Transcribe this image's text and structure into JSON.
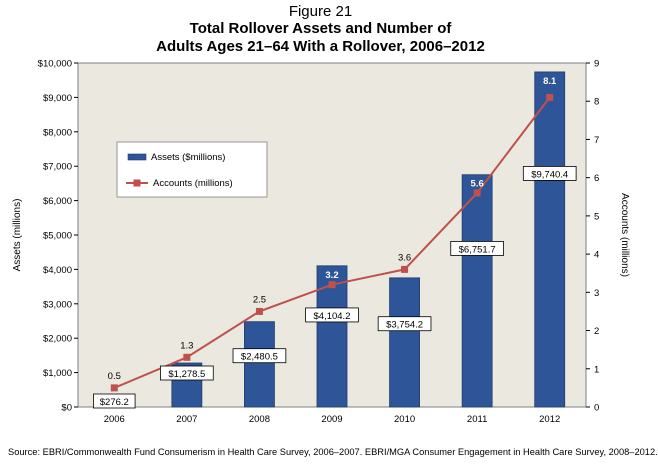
{
  "figure_label": "Figure 21",
  "title_line1": "Total Rollover Assets and Number of",
  "title_line2": "Adults Ages 21–64 With a Rollover, 2006–2012",
  "source": "Source: EBRI/Commonwealth Fund Consumerism in Health Care Survey, 2006–2007. EBRI/MGA Consumer Engagement in Health Care Survey, 2008–2012.",
  "chart_data": {
    "type": "bar",
    "categories": [
      "2006",
      "2007",
      "2008",
      "2009",
      "2010",
      "2011",
      "2012"
    ],
    "series": [
      {
        "name": "Assets ($millions)",
        "type": "bar",
        "axis": "left",
        "values": [
          276.2,
          1278.5,
          2480.5,
          4104.2,
          3754.2,
          6751.7,
          9740.4
        ],
        "labels": [
          "$276.2",
          "$1,278.5",
          "$2,480.5",
          "$4,104.2",
          "$3,754.2",
          "$6,751.7",
          "$9,740.4"
        ],
        "color": "#2e5597"
      },
      {
        "name": "Accounts (millions)",
        "type": "line",
        "axis": "right",
        "values": [
          0.5,
          1.3,
          2.5,
          3.2,
          3.6,
          5.6,
          8.1
        ],
        "labels": [
          "0.5",
          "1.3",
          "2.5",
          "3.2",
          "3.6",
          "5.6",
          "8.1"
        ],
        "color": "#c0504d"
      }
    ],
    "ylabel_left": "Assets (millions)",
    "ylabel_right": "Accounts (millions)",
    "ylim_left": [
      0,
      10000
    ],
    "ylim_right": [
      0,
      9
    ],
    "yticks_left": [
      "$0",
      "$1,000",
      "$2,000",
      "$3,000",
      "$4,000",
      "$5,000",
      "$6,000",
      "$7,000",
      "$8,000",
      "$9,000",
      "$10,000"
    ],
    "yticks_right": [
      "0",
      "1",
      "2",
      "3",
      "4",
      "5",
      "6",
      "7",
      "8",
      "9"
    ],
    "legend_position": "top-left",
    "grid": false
  }
}
